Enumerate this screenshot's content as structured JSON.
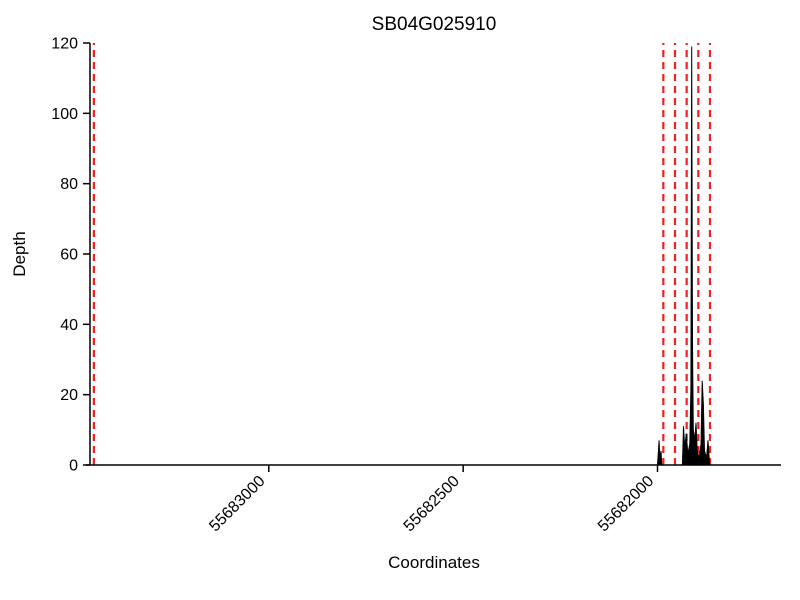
{
  "chart_data": {
    "type": "line",
    "title": "SB04G025910",
    "xlabel": "Coordinates",
    "ylabel": "Depth",
    "x_axis": {
      "min": 55683460,
      "max": 55681690,
      "reversed": true,
      "ticks": [
        55683000,
        55682500,
        55682000
      ]
    },
    "y_axis": {
      "min": 0,
      "max": 120,
      "ticks": [
        0,
        20,
        40,
        60,
        80,
        100,
        120
      ]
    },
    "boundary_lines": {
      "color": "#ee2222",
      "style": "dashed",
      "x_values": [
        55683450,
        55681985,
        55681955,
        55681925,
        55681895,
        55681865
      ]
    },
    "depth_profile": {
      "color": "#000000",
      "points": [
        [
          55682000,
          0
        ],
        [
          55681996,
          7
        ],
        [
          55681994,
          2
        ],
        [
          55681991,
          4
        ],
        [
          55681989,
          0
        ],
        [
          55681936,
          0
        ],
        [
          55681933,
          11
        ],
        [
          55681930,
          5
        ],
        [
          55681926,
          9
        ],
        [
          55681922,
          3
        ],
        [
          55681917,
          6
        ],
        [
          55681914,
          22
        ],
        [
          55681912,
          119
        ],
        [
          55681910,
          35
        ],
        [
          55681908,
          10
        ],
        [
          55681904,
          7
        ],
        [
          55681901,
          12
        ],
        [
          55681898,
          4
        ],
        [
          55681893,
          2
        ],
        [
          55681888,
          6
        ],
        [
          55681885,
          24
        ],
        [
          55681882,
          17
        ],
        [
          55681879,
          4
        ],
        [
          55681874,
          2
        ],
        [
          55681870,
          7
        ],
        [
          55681866,
          0
        ]
      ]
    }
  }
}
